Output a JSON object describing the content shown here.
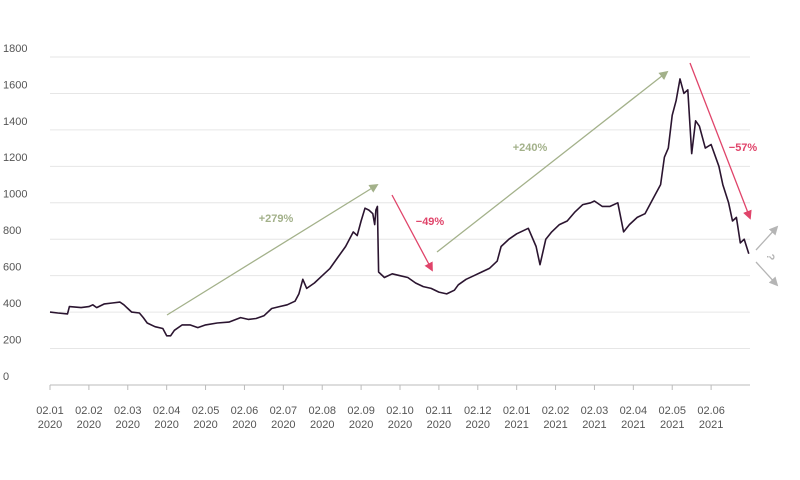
{
  "chart_data": {
    "type": "line",
    "xlim": [
      0,
      18
    ],
    "ylim": [
      0,
      1800
    ],
    "yticks": [
      0,
      200,
      400,
      600,
      800,
      1000,
      1200,
      1400,
      1600,
      1800
    ],
    "xticks": [
      {
        "value": 0,
        "label": "02.01\n2020"
      },
      {
        "value": 1,
        "label": "02.02\n2020"
      },
      {
        "value": 2,
        "label": "02.03\n2020"
      },
      {
        "value": 3,
        "label": "02.04\n2020"
      },
      {
        "value": 4,
        "label": "02.05\n2020"
      },
      {
        "value": 5,
        "label": "02.06\n2020"
      },
      {
        "value": 6,
        "label": "02.07\n2020"
      },
      {
        "value": 7,
        "label": "02.08\n2020"
      },
      {
        "value": 8,
        "label": "02.09\n2020"
      },
      {
        "value": 9,
        "label": "02.10\n2020"
      },
      {
        "value": 10,
        "label": "02.11\n2020"
      },
      {
        "value": 11,
        "label": "02.12\n2020"
      },
      {
        "value": 12,
        "label": "02.01\n2021"
      },
      {
        "value": 13,
        "label": "02.02\n2021"
      },
      {
        "value": 14,
        "label": "02.03\n2021"
      },
      {
        "value": 15,
        "label": "02.04\n2021"
      },
      {
        "value": 16,
        "label": "02.05\n2021"
      },
      {
        "value": 17,
        "label": "02.06\n2021"
      }
    ],
    "grid": true,
    "series": [
      {
        "color": "#2b1530",
        "x": [
          0,
          0.2,
          0.45,
          0.5,
          0.8,
          1.0,
          1.1,
          1.2,
          1.4,
          1.6,
          1.8,
          1.9,
          2.0,
          2.1,
          2.3,
          2.4,
          2.5,
          2.7,
          2.9,
          3.0,
          3.1,
          3.2,
          3.4,
          3.6,
          3.8,
          4.0,
          4.3,
          4.6,
          4.9,
          5.1,
          5.3,
          5.5,
          5.7,
          5.9,
          6.1,
          6.3,
          6.4,
          6.5,
          6.6,
          6.8,
          7.0,
          7.2,
          7.4,
          7.6,
          7.8,
          7.9,
          8.0,
          8.1,
          8.2,
          8.3,
          8.35,
          8.38,
          8.42,
          8.45,
          8.6,
          8.8,
          9.0,
          9.2,
          9.4,
          9.6,
          9.8,
          10.0,
          10.2,
          10.4,
          10.5,
          10.7,
          10.9,
          11.1,
          11.3,
          11.5,
          11.6,
          11.8,
          12.0,
          12.3,
          12.5,
          12.6,
          12.75,
          12.9,
          13.1,
          13.3,
          13.5,
          13.7,
          13.9,
          14.0,
          14.2,
          14.4,
          14.6,
          14.75,
          14.9,
          15.1,
          15.3,
          15.5,
          15.7,
          15.8,
          15.9,
          16.0,
          16.1,
          16.2,
          16.3,
          16.4,
          16.5,
          16.6,
          16.7,
          16.85,
          17.0,
          17.2,
          17.3,
          17.45,
          17.55,
          17.65,
          17.75,
          17.85,
          17.97
        ],
        "values": [
          400,
          395,
          390,
          430,
          425,
          430,
          440,
          425,
          445,
          450,
          455,
          440,
          420,
          400,
          395,
          370,
          340,
          320,
          310,
          270,
          270,
          300,
          330,
          330,
          315,
          330,
          340,
          345,
          370,
          360,
          365,
          380,
          420,
          430,
          440,
          460,
          500,
          580,
          530,
          560,
          600,
          640,
          700,
          760,
          840,
          820,
          900,
          970,
          960,
          940,
          880,
          960,
          980,
          620,
          590,
          610,
          600,
          590,
          560,
          540,
          530,
          510,
          500,
          520,
          550,
          580,
          600,
          620,
          640,
          680,
          760,
          800,
          830,
          860,
          760,
          660,
          800,
          840,
          880,
          900,
          950,
          990,
          1000,
          1010,
          980,
          980,
          1000,
          840,
          880,
          920,
          940,
          1020,
          1100,
          1250,
          1300,
          1480,
          1560,
          1680,
          1600,
          1620,
          1270,
          1450,
          1420,
          1300,
          1320,
          1200,
          1100,
          1000,
          900,
          920,
          780,
          800,
          720
        ]
      }
    ],
    "annotations": [
      {
        "text": "+279%",
        "color": "#a3b18a"
      },
      {
        "text": "−49%",
        "color": "#e0446a"
      },
      {
        "text": "+240%",
        "color": "#a3b18a"
      },
      {
        "text": "−57%",
        "color": "#e0446a"
      },
      {
        "text": "?",
        "color": "#b5b5b5"
      }
    ]
  }
}
